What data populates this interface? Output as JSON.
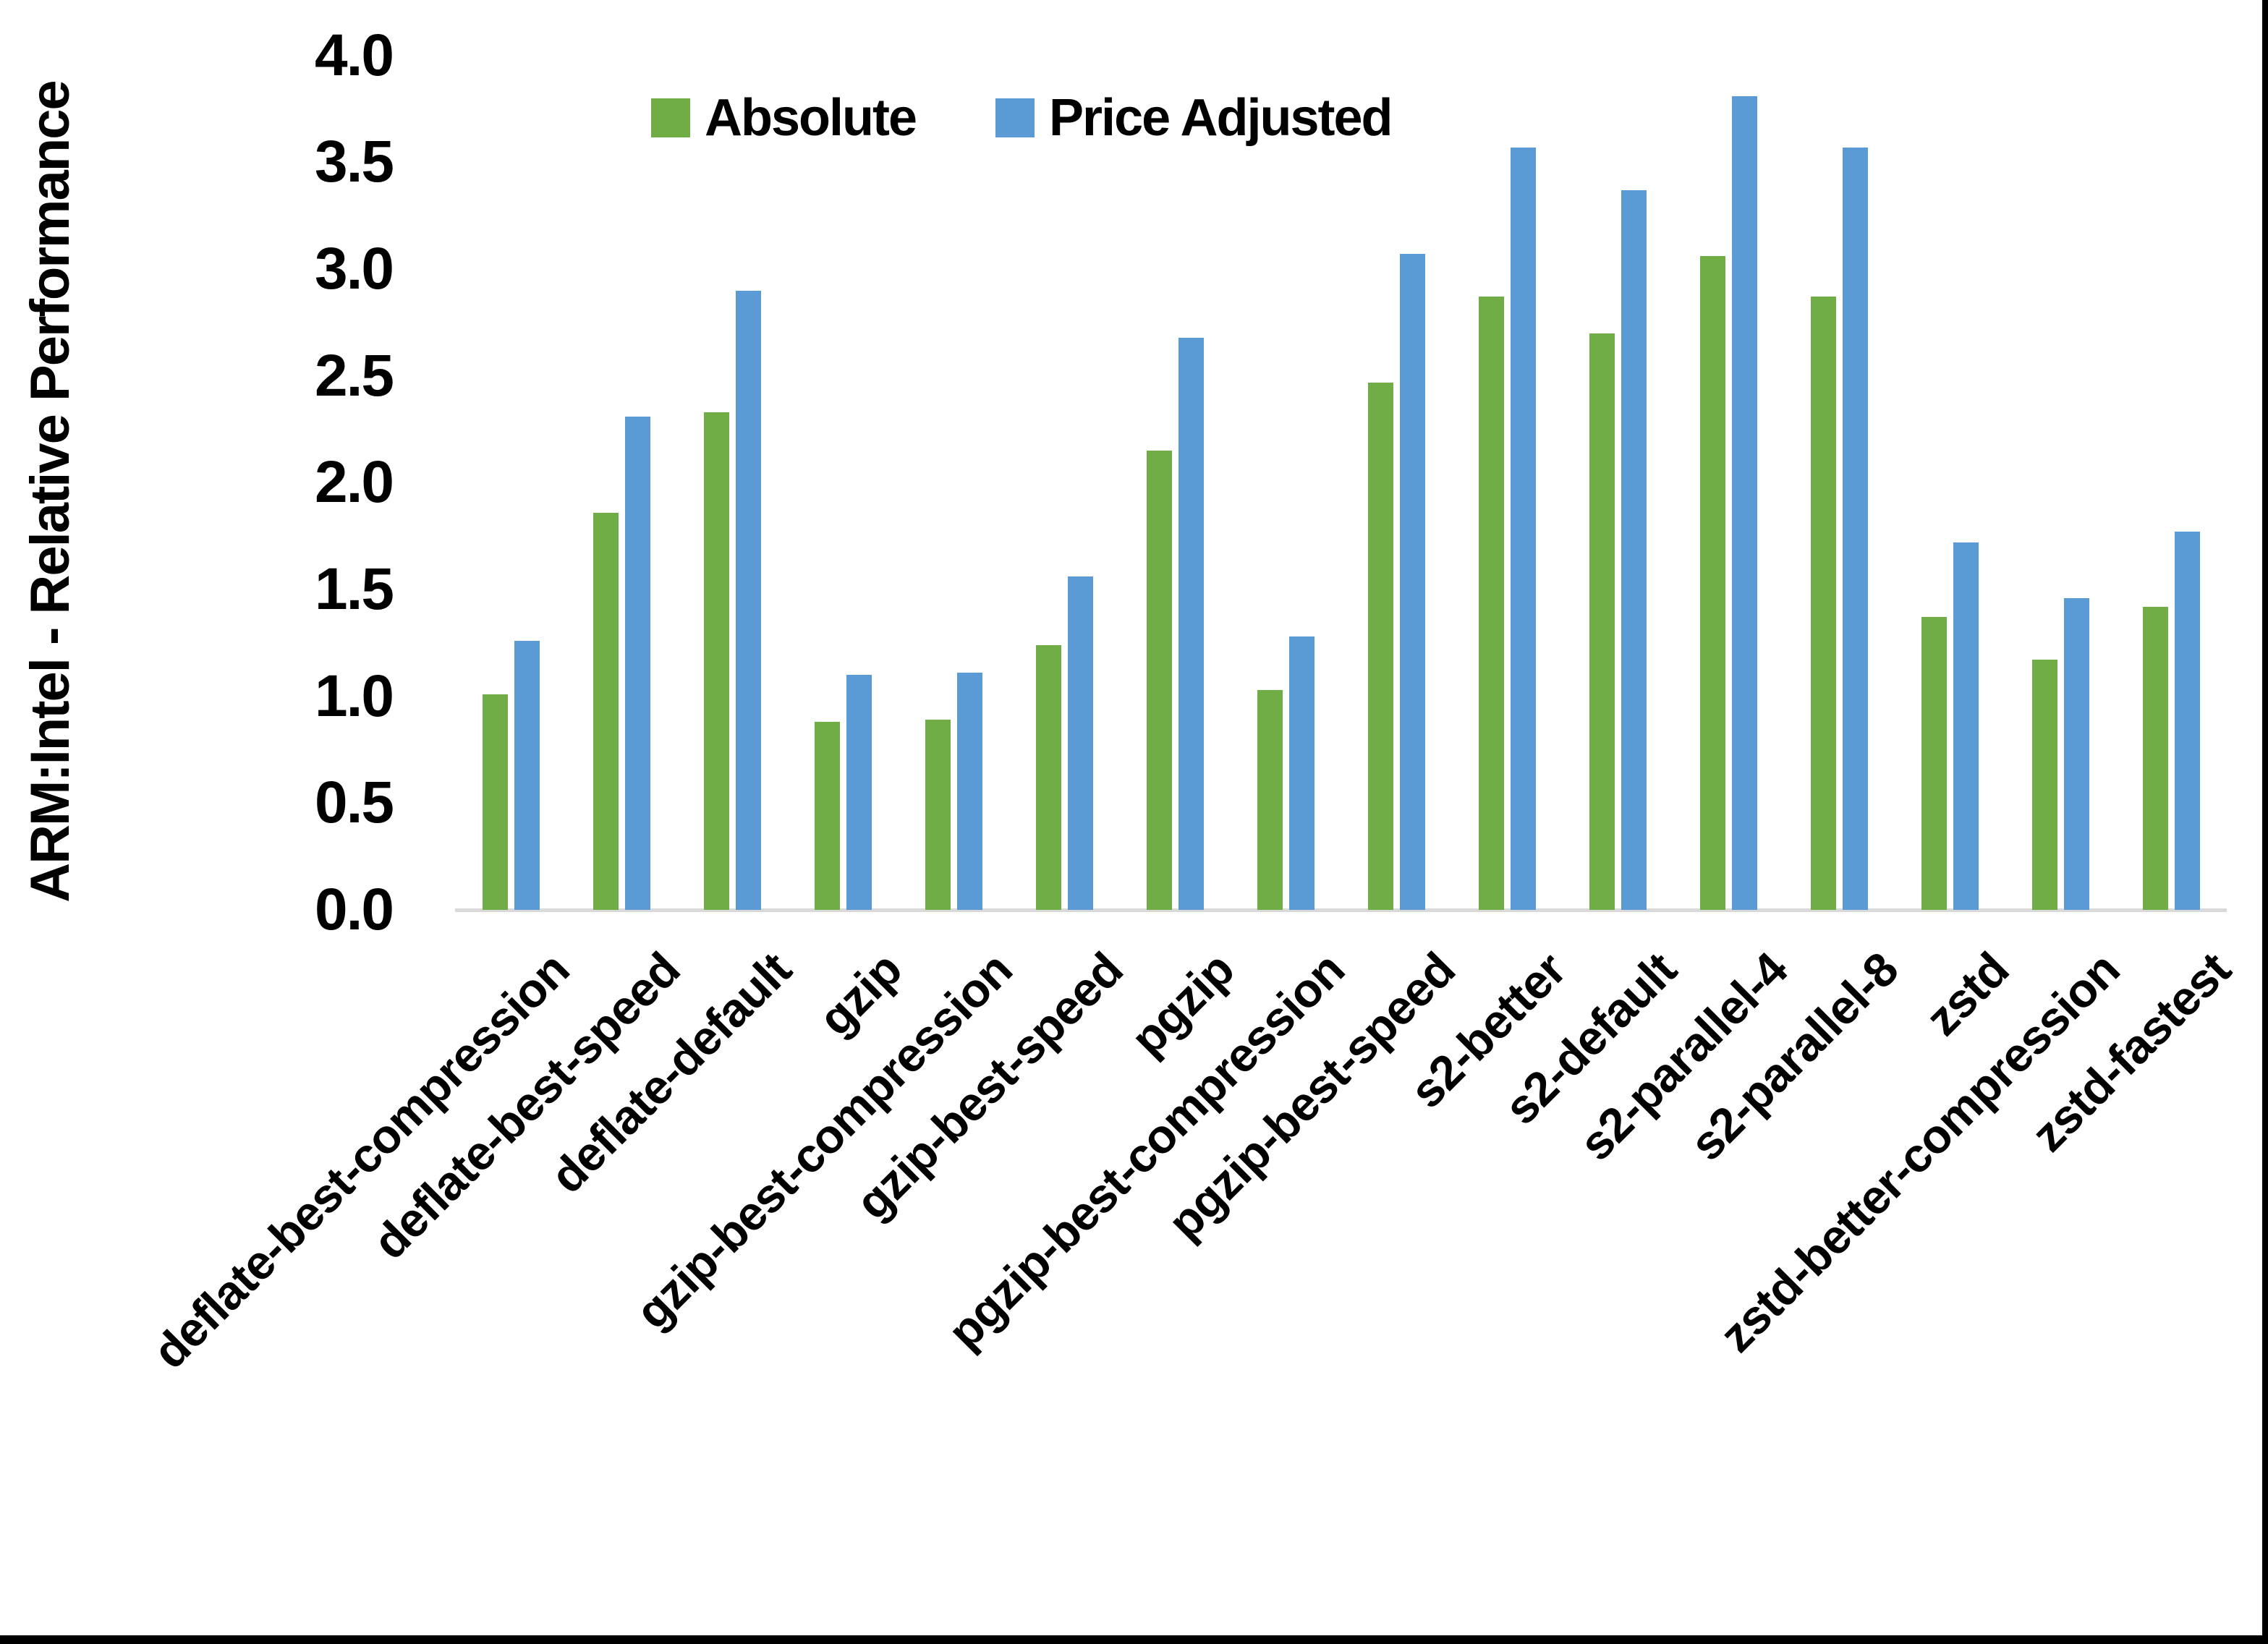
{
  "chart_data": {
    "type": "bar",
    "title": "",
    "xlabel": "",
    "ylabel": "ARM:Intel - Relative Performance",
    "ylim": [
      0,
      4
    ],
    "ytick_step": 0.5,
    "ytick_labels": [
      "0.0",
      "0.5",
      "1.0",
      "1.5",
      "2.0",
      "2.5",
      "3.0",
      "3.5",
      "4.0"
    ],
    "grid": false,
    "legend_position": "top-center",
    "categories": [
      "deflate-best-compression",
      "deflate-best-speed",
      "deflate-default",
      "gzip",
      "gzip-best-compression",
      "gzip-best-speed",
      "pgzip",
      "pgzip-best-compression",
      "pgzip-best-speed",
      "s2-better",
      "s2-default",
      "s2-parallel-4",
      "s2-parallel-8",
      "zstd",
      "zstd-better-compression",
      "zstd-fastest"
    ],
    "series": [
      {
        "name": "Absolute",
        "color": "#70AD47",
        "values": [
          1.01,
          1.86,
          2.33,
          0.88,
          0.89,
          1.24,
          2.15,
          1.03,
          2.47,
          2.87,
          2.7,
          3.06,
          2.87,
          1.37,
          1.17,
          1.42
        ]
      },
      {
        "name": "Price Adjusted",
        "color": "#5B9BD5",
        "values": [
          1.26,
          2.31,
          2.9,
          1.1,
          1.11,
          1.56,
          2.68,
          1.28,
          3.07,
          3.57,
          3.37,
          3.81,
          3.57,
          1.72,
          1.46,
          1.77
        ]
      }
    ]
  },
  "colors": {
    "background": "#FFFFFF",
    "axis_line": "#D9D9D9",
    "text": "#000000",
    "border": "#000000"
  }
}
